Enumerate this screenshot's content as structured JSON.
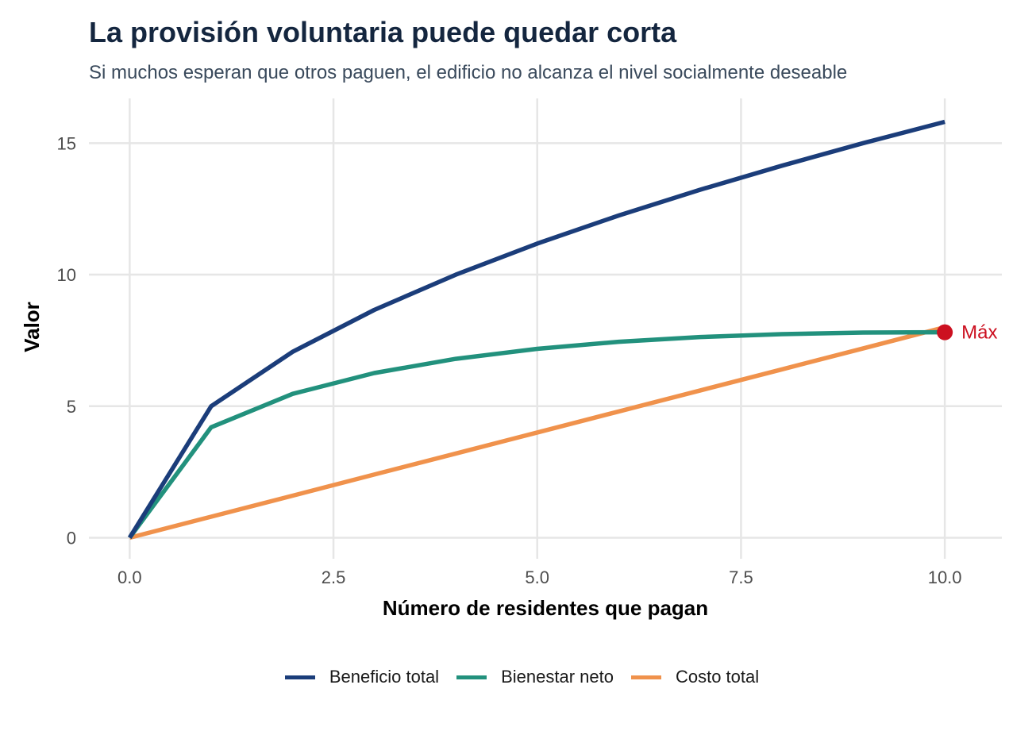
{
  "chart_data": {
    "type": "line",
    "title": "La provisión voluntaria puede quedar corta",
    "subtitle": "Si muchos esperan que otros paguen, el edificio no alcanza el nivel socialmente deseable",
    "xlabel": "Número de residentes que pagan",
    "ylabel": "Valor",
    "xlim": [
      -0.5,
      10.7
    ],
    "ylim": [
      -0.8,
      16.7
    ],
    "xticks": [
      0,
      2.5,
      5,
      7.5,
      10
    ],
    "xtick_labels": [
      "0.0",
      "2.5",
      "5.0",
      "7.5",
      "10.0"
    ],
    "yticks": [
      0,
      5,
      10,
      15
    ],
    "ytick_labels": [
      "0",
      "5",
      "10",
      "15"
    ],
    "grid": true,
    "legend_position": "bottom",
    "x": [
      0,
      1,
      2,
      3,
      4,
      5,
      6,
      7,
      8,
      9,
      10
    ],
    "series": [
      {
        "name": "Beneficio total",
        "color": "#1b3d7a",
        "values": [
          0,
          5.0,
          7.07,
          8.66,
          10.0,
          11.18,
          12.25,
          13.23,
          14.14,
          15.0,
          15.81
        ]
      },
      {
        "name": "Bienestar neto",
        "color": "#22917d",
        "values": [
          0,
          4.2,
          5.47,
          6.26,
          6.8,
          7.18,
          7.45,
          7.63,
          7.74,
          7.8,
          7.81
        ]
      },
      {
        "name": "Costo total",
        "color": "#f0924c",
        "values": [
          0,
          0.8,
          1.6,
          2.4,
          3.2,
          4.0,
          4.8,
          5.6,
          6.4,
          7.2,
          8.0
        ]
      }
    ],
    "annotations": [
      {
        "label": "Máx",
        "x": 10,
        "y": 7.81,
        "color": "#cc1020"
      }
    ]
  }
}
